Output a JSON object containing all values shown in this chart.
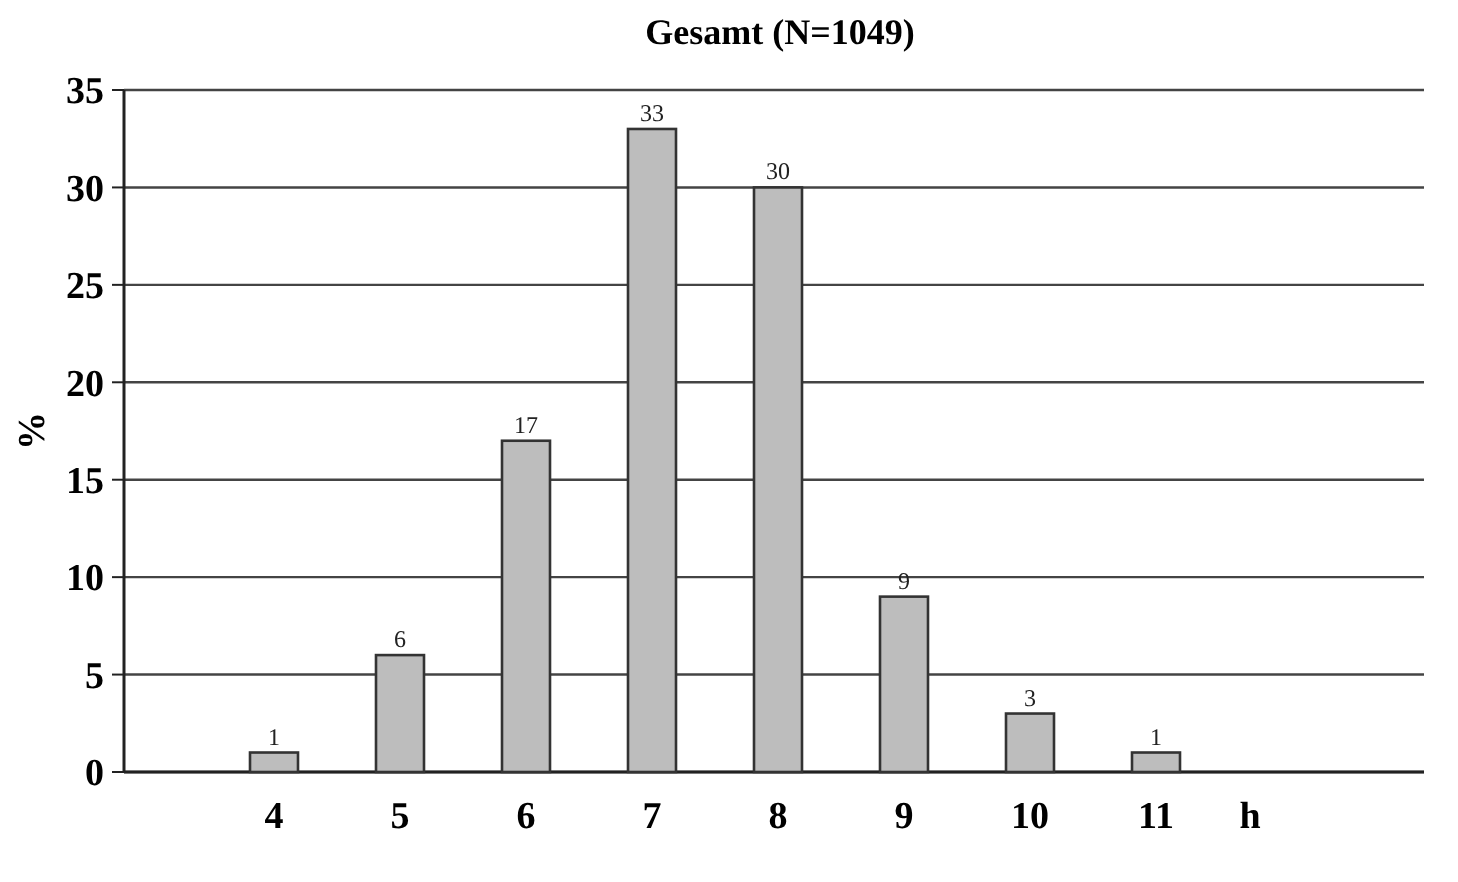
{
  "chart_data": {
    "type": "bar",
    "title": "Gesamt (N=1049)",
    "xlabel": "h",
    "ylabel": "%",
    "categories": [
      "4",
      "5",
      "6",
      "7",
      "8",
      "9",
      "10",
      "11"
    ],
    "values": [
      1,
      6,
      17,
      33,
      30,
      9,
      3,
      1
    ],
    "color": "#bdbdbd",
    "ylim": [
      0,
      35
    ],
    "yticks": [
      0,
      5,
      10,
      15,
      20,
      25,
      30,
      35
    ],
    "grid": "y",
    "data_labels": true
  }
}
